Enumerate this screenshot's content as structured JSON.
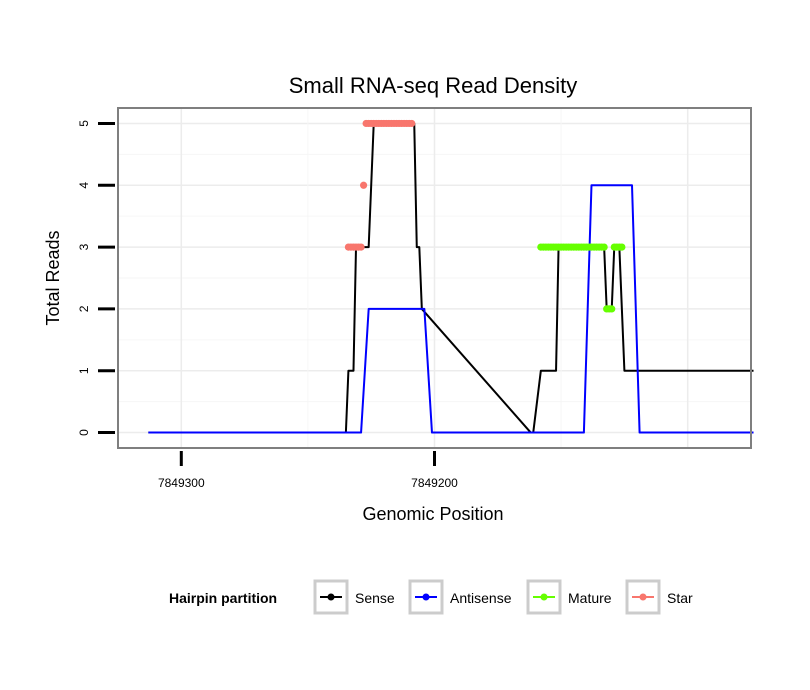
{
  "chart_data": {
    "type": "line",
    "title": "Small RNA-seq Read Density",
    "xlabel": "Genomic Position",
    "ylabel": "Total Reads",
    "x_reversed": true,
    "xlim": [
      7849325,
      7849075
    ],
    "ylim": [
      -0.25,
      5.25
    ],
    "x_ticks": [
      7849300,
      7849200
    ],
    "x_tick_labels": [
      "7849300",
      "7849200"
    ],
    "y_ticks": [
      0,
      1,
      2,
      3,
      4,
      5
    ],
    "y_tick_labels": [
      "0",
      "1",
      "2",
      "3",
      "4",
      "5"
    ],
    "grid": true,
    "legend_position": "bottom",
    "legend_title": "Hairpin partition",
    "series": [
      {
        "name": "Sense",
        "color": "#000000",
        "style": "line",
        "x": [
          7849313,
          7849235,
          7849234,
          7849232,
          7849231,
          7849229,
          7849228,
          7849227,
          7849226,
          7849225,
          7849224,
          7849223,
          7849222,
          7849221,
          7849220,
          7849219,
          7849218,
          7849217,
          7849216,
          7849215,
          7849214,
          7849213,
          7849212,
          7849208,
          7849207,
          7849206,
          7849205,
          7849162,
          7849161,
          7849158,
          7849157,
          7849152,
          7849151,
          7849150,
          7849149,
          7849148,
          7849147,
          7849146,
          7849145,
          7849144,
          7849143,
          7849142,
          7849141,
          7849140,
          7849139,
          7849138,
          7849137,
          7849136,
          7849135,
          7849133,
          7849132,
          7849131,
          7849130,
          7849129,
          7849128,
          7849127,
          7849126,
          7849125,
          7849124,
          7849123,
          7849122,
          7849121,
          7849120,
          7849119,
          7849118,
          7849117,
          7849116,
          7849115,
          7849114,
          7849113,
          7849112,
          7849111,
          7849110,
          7849109,
          7849108,
          7849107,
          7849106,
          7849105,
          7849104,
          7849103,
          7849102,
          7849101,
          7849100,
          7849099,
          7849098,
          7849097,
          7849096,
          7849095,
          7849094,
          7849093,
          7849092,
          7849091,
          7849090,
          7849089,
          7849088,
          7849087,
          7849086,
          7849085,
          7849084,
          7849083,
          7849082,
          7849081,
          7849080,
          7849079,
          7849078,
          7849077,
          7849076,
          7849075,
          7849074
        ],
        "values": [
          0,
          0,
          1,
          1,
          3,
          3,
          3,
          3,
          3,
          4,
          5,
          5,
          5,
          5,
          5,
          5,
          5,
          5,
          5,
          5,
          5,
          5,
          5,
          5,
          3,
          3,
          2,
          0,
          0,
          1,
          1,
          1,
          3,
          3,
          3,
          3,
          3,
          3,
          3,
          3,
          3,
          3,
          3,
          3,
          3,
          3,
          3,
          3,
          3,
          3,
          2,
          2,
          2,
          3,
          3,
          3,
          2,
          1,
          1,
          1,
          1,
          1,
          1,
          1,
          1,
          1,
          1,
          1,
          1,
          1,
          1,
          1,
          1,
          1,
          1,
          1,
          1,
          1,
          1,
          1,
          1,
          1,
          1,
          1,
          1,
          1,
          1,
          1,
          1,
          1,
          1,
          1,
          1,
          1,
          1,
          1,
          1,
          1,
          1,
          1,
          1,
          1,
          1,
          1,
          1,
          1,
          1,
          1,
          1
        ]
      },
      {
        "name": "Antisense",
        "color": "#0000ff",
        "style": "line",
        "x": [
          7849313,
          7849229,
          7849226,
          7849204,
          7849201,
          7849164,
          7849161,
          7849141,
          7849138,
          7849122,
          7849119,
          7849074
        ],
        "values": [
          0,
          0,
          2,
          2,
          0,
          0,
          0,
          0,
          4,
          4,
          0,
          0
        ]
      },
      {
        "name": "Mature",
        "color": "#66ff00",
        "style": "points",
        "x": [
          7849158,
          7849157,
          7849156,
          7849155,
          7849154,
          7849153,
          7849152,
          7849151,
          7849150,
          7849149,
          7849148,
          7849147,
          7849146,
          7849145,
          7849144,
          7849143,
          7849142,
          7849141,
          7849140,
          7849139,
          7849138,
          7849137,
          7849136,
          7849135,
          7849134,
          7849133,
          7849132,
          7849131,
          7849130,
          7849129,
          7849128,
          7849127,
          7849126
        ],
        "values": [
          3,
          3,
          3,
          3,
          3,
          3,
          3,
          3,
          3,
          3,
          3,
          3,
          3,
          3,
          3,
          3,
          3,
          3,
          3,
          3,
          3,
          3,
          3,
          3,
          3,
          3,
          2,
          2,
          2,
          3,
          3,
          3,
          3
        ]
      },
      {
        "name": "Star",
        "color": "#f8766d",
        "style": "points",
        "x": [
          7849234,
          7849233,
          7849232,
          7849231,
          7849230,
          7849229,
          7849228,
          7849227,
          7849226,
          7849225,
          7849224,
          7849223,
          7849222,
          7849221,
          7849220,
          7849219,
          7849218,
          7849217,
          7849216,
          7849215,
          7849214,
          7849213,
          7849212,
          7849211,
          7849210,
          7849209
        ],
        "values": [
          3,
          3,
          3,
          3,
          3,
          3,
          4,
          5,
          5,
          5,
          5,
          5,
          5,
          5,
          5,
          5,
          5,
          5,
          5,
          5,
          5,
          5,
          5,
          5,
          5,
          5
        ]
      }
    ]
  }
}
